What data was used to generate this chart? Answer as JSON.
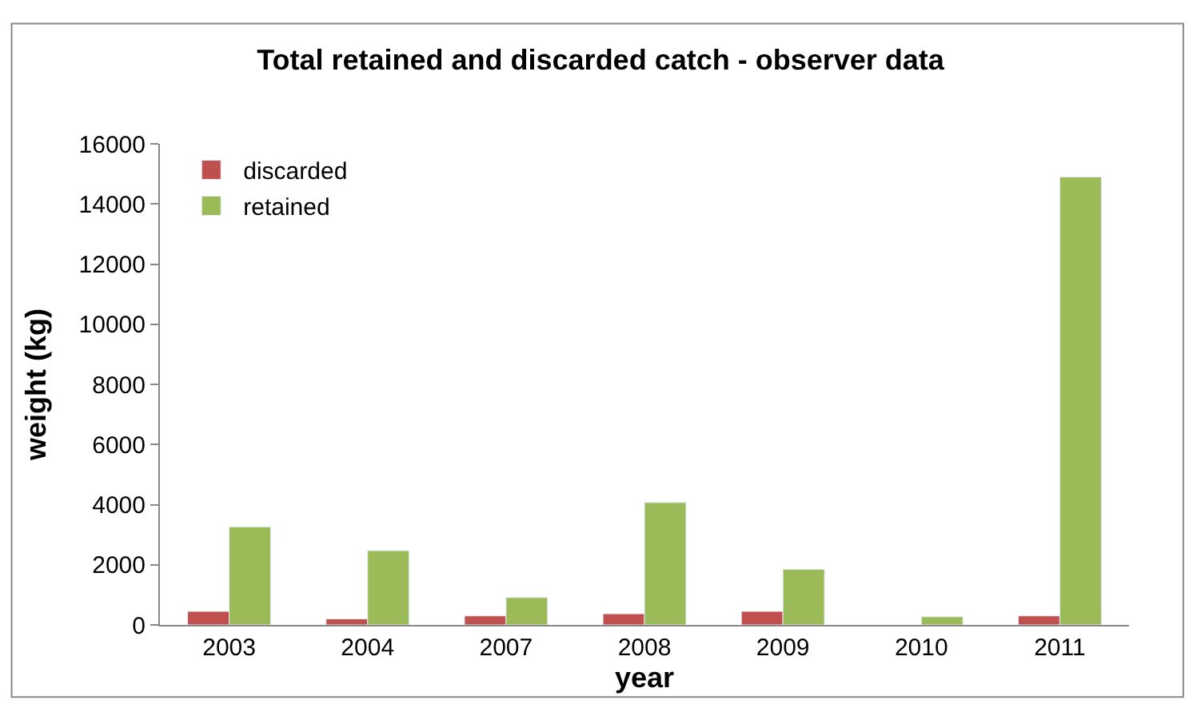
{
  "chart_data": {
    "type": "bar",
    "title": "Total retained and discarded catch - observer data",
    "xlabel": "year",
    "ylabel": "weight (kg)",
    "categories": [
      "2003",
      "2004",
      "2007",
      "2008",
      "2009",
      "2010",
      "2011"
    ],
    "series": [
      {
        "name": "discarded",
        "color": "#c0504d",
        "values": [
          450,
          200,
          300,
          370,
          450,
          null,
          300
        ]
      },
      {
        "name": "retained",
        "color": "#9bbb59",
        "values": [
          3260,
          2470,
          910,
          4070,
          1850,
          270,
          14900
        ]
      }
    ],
    "ylim": [
      0,
      16000
    ],
    "yticks": [
      0,
      2000,
      4000,
      6000,
      8000,
      10000,
      12000,
      14000,
      16000
    ],
    "legend": "top left"
  }
}
